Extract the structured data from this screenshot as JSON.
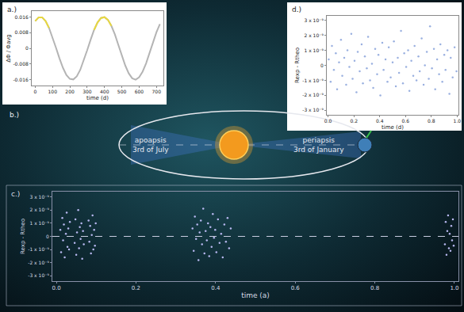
{
  "chart_data": [
    {
      "type": "line",
      "panel_label": "a.)",
      "x_label": "time (d)",
      "y_label": "ΔΦ / Φavg",
      "x": [
        0,
        20,
        40,
        60,
        80,
        100,
        120,
        140,
        160,
        180,
        200,
        220,
        240,
        260,
        280,
        300,
        320,
        340,
        360,
        380,
        400,
        420,
        440,
        460,
        480,
        500,
        520,
        540,
        560,
        580,
        600,
        620,
        640,
        660,
        680,
        700,
        720
      ],
      "series": [
        {
          "color": "#b4b4b4",
          "values": [
            0.0139,
            0.0158,
            0.0158,
            0.0139,
            0.0104,
            0.0057,
            0.0003,
            -0.0051,
            -0.0099,
            -0.0136,
            -0.0156,
            -0.0159,
            -0.0143,
            -0.011,
            -0.0064,
            -0.001,
            0.0044,
            0.0094,
            0.0132,
            0.0155,
            0.0159,
            0.0145,
            0.0114,
            0.0071,
            0.0017,
            -0.0038,
            -0.0088,
            -0.0128,
            -0.0153,
            -0.016,
            -0.0148,
            -0.0119,
            -0.0077,
            -0.0024,
            0.0031,
            0.0082,
            0.0124
          ]
        },
        {
          "color": "#e8d840",
          "values": [
            0.0139,
            0.0158,
            0.0158,
            0.0139,
            0.0104,
            null,
            null,
            null,
            null,
            null,
            null,
            null,
            null,
            null,
            null,
            null,
            null,
            0.0094,
            0.0132,
            0.0155,
            0.0159,
            0.0145,
            0.0114,
            null,
            null,
            null,
            null,
            null,
            null,
            null,
            null,
            null,
            null,
            null,
            null,
            null,
            null
          ]
        }
      ],
      "xlim": [
        -20,
        740
      ],
      "xticks": [
        0,
        100,
        200,
        300,
        400,
        500,
        600,
        700
      ],
      "ylim": [
        -0.019,
        0.019
      ],
      "yticks": [
        -0.016,
        -0.008,
        0,
        0.008,
        0.016
      ],
      "grid": false
    },
    {
      "type": "scatter",
      "panel_label": "d.)",
      "x_label": "time (d)",
      "y_label": "Rexp - Rtheo",
      "x": [
        0.005,
        0.02,
        0.03,
        0.045,
        0.06,
        0.07,
        0.085,
        0.1,
        0.11,
        0.125,
        0.14,
        0.15,
        0.165,
        0.18,
        0.19,
        0.205,
        0.22,
        0.23,
        0.245,
        0.26,
        0.27,
        0.285,
        0.3,
        0.31,
        0.325,
        0.34,
        0.35,
        0.365,
        0.38,
        0.39,
        0.405,
        0.42,
        0.43,
        0.445,
        0.46,
        0.47,
        0.485,
        0.5,
        0.51,
        0.525,
        0.54,
        0.55,
        0.565,
        0.58,
        0.59,
        0.605,
        0.62,
        0.63,
        0.645,
        0.66,
        0.67,
        0.685,
        0.7,
        0.71,
        0.725,
        0.74,
        0.75,
        0.765,
        0.78,
        0.79,
        0.805,
        0.82,
        0.83,
        0.845,
        0.86,
        0.87,
        0.885,
        0.9,
        0.91,
        0.925,
        0.94,
        0.95,
        0.965,
        0.98,
        0.995
      ],
      "series": [
        {
          "color": "#9ab0e0",
          "marker": "dot",
          "values": [
            4e-10,
            -1.1e-09,
            1.3e-09,
            -3e-10,
            8e-10,
            -1.6e-09,
            2e-10,
            1.7e-09,
            -7e-10,
            5e-10,
            -1.3e-09,
            1e-09,
            -1e-10,
            2.1e-09,
            -9e-10,
            3e-10,
            -1.8e-09,
            9e-10,
            -4e-10,
            1.4e-09,
            -1.2e-09,
            6e-10,
            -2e-10,
            1.9e-09,
            -1e-09,
            1e-10,
            -1.5e-09,
            1.1e-09,
            -6e-10,
            7e-10,
            -2e-09,
            1.5e-09,
            -3e-10,
            4e-10,
            -1.1e-09,
            1.2e-09,
            -8e-10,
            2e-10,
            1.6e-09,
            -1.4e-09,
            5e-10,
            -5e-10,
            2.3e-09,
            -1.2e-09,
            8e-10,
            -1e-10,
            1e-09,
            -1.7e-09,
            3e-10,
            -7e-10,
            1.3e-09,
            -1e-09,
            6e-10,
            -4e-10,
            1.8e-09,
            -1.3e-09,
            0.0,
            9e-10,
            -9e-10,
            2.6e-09,
            -2e-10,
            1.1e-09,
            -1.6e-09,
            4e-10,
            -6e-10,
            1.4e-09,
            -1.1e-09,
            7e-10,
            -3e-10,
            1e-09,
            -1.9e-09,
            5e-10,
            -8e-10,
            1.2e-09,
            -4e-10
          ]
        }
      ],
      "xlim": [
        -0.01,
        1.01
      ],
      "xticks": [
        {
          "value": 0,
          "label": "0.0"
        },
        {
          "value": 0.2,
          "label": "0.2"
        },
        {
          "value": 0.4,
          "label": "0.4"
        },
        {
          "value": 0.6,
          "label": "0.6"
        },
        {
          "value": 0.8,
          "label": "0.8"
        },
        {
          "value": 1,
          "label": "1.0"
        }
      ],
      "ylim": [
        -3.3e-09,
        3.3e-09
      ],
      "yticks": [
        {
          "value": -3e-09,
          "label": "-3 x 10⁻⁹"
        },
        {
          "value": -2e-09,
          "label": "-2 x 10⁻⁹"
        },
        {
          "value": -1e-09,
          "label": "-1 x 10⁻⁹"
        },
        0,
        {
          "value": 1e-09,
          "label": "1 x 10⁻⁹"
        },
        {
          "value": 2e-09,
          "label": "2 x 10⁻⁹"
        },
        {
          "value": 3e-09,
          "label": "3 x 10⁻⁹"
        }
      ],
      "grid": false
    },
    {
      "type": "scatter",
      "panel_label": "c.)",
      "x_label": "time (a)",
      "y_label": "Rexp - Rtheo",
      "x": [
        0.01,
        0.012,
        0.015,
        0.017,
        0.019,
        0.021,
        0.024,
        0.026,
        0.028,
        0.03,
        0.032,
        0.034,
        0.046,
        0.048,
        0.05,
        0.052,
        0.055,
        0.057,
        0.059,
        0.061,
        0.063,
        0.065,
        0.067,
        0.069,
        0.081,
        0.083,
        0.085,
        0.087,
        0.089,
        0.091,
        0.093,
        0.095,
        0.097,
        0.099,
        0.342,
        0.345,
        0.348,
        0.351,
        0.354,
        0.357,
        0.36,
        0.363,
        0.366,
        0.369,
        0.372,
        0.375,
        0.378,
        0.381,
        0.384,
        0.387,
        0.39,
        0.393,
        0.396,
        0.399,
        0.402,
        0.406,
        0.41,
        0.414,
        0.418,
        0.422,
        0.426,
        0.43,
        0.434,
        0.438,
        0.976,
        0.978,
        0.98,
        0.982,
        0.984,
        0.986,
        0.988,
        0.99,
        0.992,
        0.994,
        0.996,
        0.998
      ],
      "series": [
        {
          "color": "#b8b8f0",
          "marker": "dot",
          "values": [
            5e-10,
            -1.2e-09,
            1.4e-09,
            -3e-10,
            9e-10,
            -1.6e-09,
            2e-10,
            1.8e-09,
            -8e-10,
            6e-10,
            -1e-09,
            1.1e-09,
            -5e-10,
            1.3e-09,
            -1.4e-09,
            3e-10,
            2e-09,
            -9e-10,
            7e-10,
            -2e-10,
            1e-09,
            -1.7e-09,
            4e-10,
            -6e-10,
            1.2e-09,
            -4e-10,
            8e-10,
            -1.3e-09,
            1e-10,
            1.6e-09,
            -1e-09,
            5e-10,
            -7e-10,
            1e-09,
            6e-10,
            -1.1e-09,
            1.5e-09,
            -2e-10,
            9e-10,
            -1.8e-09,
            3e-10,
            1.2e-09,
            -6e-10,
            2.1e-09,
            -1.3e-09,
            4e-10,
            -3e-10,
            1e-09,
            -1.5e-09,
            7e-10,
            -8e-10,
            1.7e-09,
            -1e-10,
            5e-10,
            -1.2e-09,
            1.3e-09,
            -5e-10,
            2e-10,
            -1.6e-09,
            9e-10,
            -4e-10,
            1.4e-09,
            -9e-10,
            6e-10,
            -6e-10,
            1.1e-09,
            -1.4e-09,
            4e-10,
            1.6e-09,
            -9e-10,
            2e-10,
            -1.1e-09,
            8e-10,
            -3e-10,
            1.3e-09,
            -7e-10
          ]
        }
      ],
      "hline": 0,
      "xlim": [
        -0.01,
        1.01
      ],
      "xticks": [
        {
          "value": 0,
          "label": "0.0"
        },
        {
          "value": 0.2,
          "label": "0.2"
        },
        {
          "value": 0.4,
          "label": "0.4"
        },
        {
          "value": 0.6,
          "label": "0.6"
        },
        {
          "value": 0.8,
          "label": "0.8"
        },
        {
          "value": 1,
          "label": "1.0"
        }
      ],
      "ylim": [
        -3.4e-09,
        3.4e-09
      ],
      "yticks": [
        {
          "value": -3e-09,
          "label": "-3 x 10⁻⁹"
        },
        {
          "value": -2e-09,
          "label": "-2 x 10⁻⁹"
        },
        {
          "value": -1e-09,
          "label": "-1 x 10⁻⁹"
        },
        0,
        {
          "value": 1e-09,
          "label": "1 x 10⁻⁹"
        },
        {
          "value": 2e-09,
          "label": "2 x 10⁻⁹"
        },
        {
          "value": 3e-09,
          "label": "3 x 10⁻⁹"
        }
      ],
      "grid": false
    }
  ],
  "diagram": {
    "panel_label": "b.)",
    "left_label": [
      "apoapsis",
      "3rd of July"
    ],
    "right_label": [
      "periapsis",
      "3rd of January"
    ]
  }
}
